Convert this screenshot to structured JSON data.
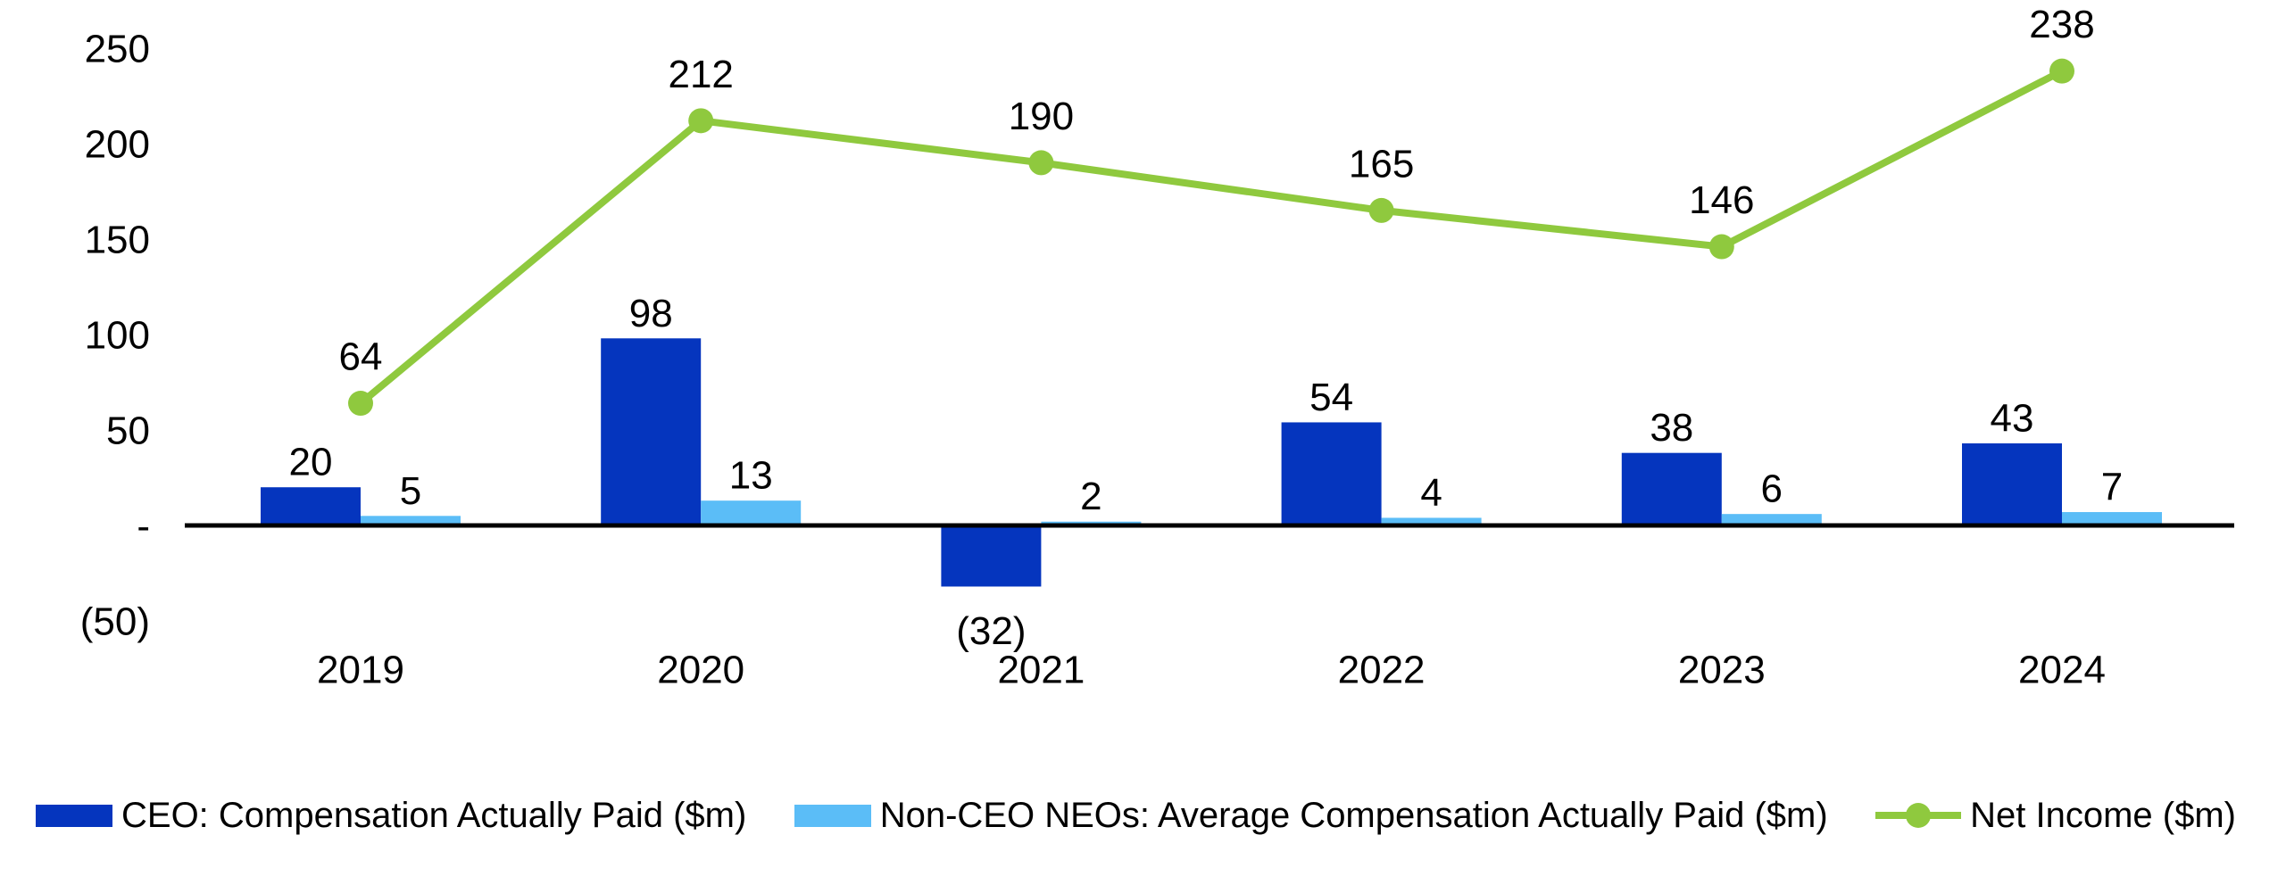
{
  "chart_data": {
    "type": "combo-bar-line",
    "title": "",
    "categories": [
      "2019",
      "2020",
      "2021",
      "2022",
      "2023",
      "2024"
    ],
    "series": [
      {
        "name": "CEO: Compensation Actually Paid ($m)",
        "type": "bar",
        "color": "#0535BE",
        "values": [
          20,
          98,
          -32,
          54,
          38,
          43
        ],
        "labels": [
          "20",
          "98",
          "(32)",
          "54",
          "38",
          "43"
        ]
      },
      {
        "name": "Non-CEO NEOs: Average Compensation Actually Paid ($m)",
        "type": "bar",
        "color": "#5BBDF7",
        "values": [
          5,
          13,
          2,
          4,
          6,
          7
        ],
        "labels": [
          "5",
          "13",
          "2",
          "4",
          "6",
          "7"
        ]
      },
      {
        "name": "Net Income ($m)",
        "type": "line",
        "color": "#8FC93E",
        "values": [
          64,
          212,
          190,
          165,
          146,
          238
        ],
        "labels": [
          "64",
          "212",
          "190",
          "165",
          "146",
          "238"
        ]
      }
    ],
    "y_axis": {
      "min": -50,
      "max": 250,
      "ticks": [
        {
          "value": 250,
          "label": "250"
        },
        {
          "value": 200,
          "label": "200"
        },
        {
          "value": 150,
          "label": "150"
        },
        {
          "value": 100,
          "label": "100"
        },
        {
          "value": 50,
          "label": "50"
        },
        {
          "value": 0,
          "label": "-"
        },
        {
          "value": -50,
          "label": "(50)"
        }
      ]
    },
    "grid": false,
    "legend_position": "bottom",
    "data_labels": true
  },
  "colors": {
    "ceo_bar": "#0535BE",
    "neo_bar": "#5BBDF7",
    "net_income_line": "#8FC93E",
    "axis": "#000000",
    "text": "#000000",
    "background": "#FFFFFF"
  }
}
